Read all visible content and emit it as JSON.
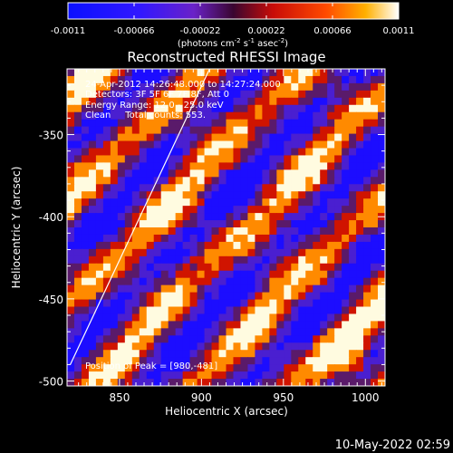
{
  "chart_data": {
    "type": "heatmap",
    "title": "Reconstructed RHESSI Image",
    "xlabel": "Heliocentric X (arcsec)",
    "ylabel": "Heliocentric Y (arcsec)",
    "xlim": [
      818,
      1012
    ],
    "ylim": [
      -503,
      -310
    ],
    "xticks": [
      850,
      900,
      950,
      1000
    ],
    "yticks": [
      -350,
      -400,
      -450,
      -500
    ],
    "colorbar": {
      "min": -0.0011,
      "max": 0.0011,
      "tick_values": [
        -0.0011,
        -0.00066,
        -0.00022,
        0.00022,
        0.00066,
        0.0011
      ],
      "tick_labels": [
        "-0.0011",
        "-0.00066",
        "-0.00022",
        "0.00022",
        "0.00066",
        "0.0011"
      ],
      "unit_label": "(photons cm",
      "unit_exp1": "-2",
      "unit_mid": " s",
      "unit_exp2": "-1",
      "unit_mid2": " asec",
      "unit_exp3": "-2",
      "unit_end": ")"
    },
    "annotations": {
      "time_range": "24-Apr-2012 14:26:48.000 to 14:27:24.000",
      "detectors": "Detectors: 3F 5F 6F 7F 8F, Att 0",
      "energy": "Energy Range: 12.0 - 25.0 keV",
      "clean": "Clean     Total counts: 553.",
      "peak": "Position of Peak = [980,-481]"
    },
    "limb_line": {
      "x": [
        820,
        905
      ],
      "y": [
        -490,
        -310
      ]
    },
    "peak": {
      "x": 980,
      "y": -481
    },
    "colors": {
      "low": "#1c0dff",
      "mid_low": "#4a1fd0",
      "mid": "#5a1a6a",
      "mid_high": "#d01400",
      "high": "#ff8a00",
      "max": "#fffbe0"
    }
  },
  "footer": {
    "timestamp": "10-May-2022 02:59"
  }
}
